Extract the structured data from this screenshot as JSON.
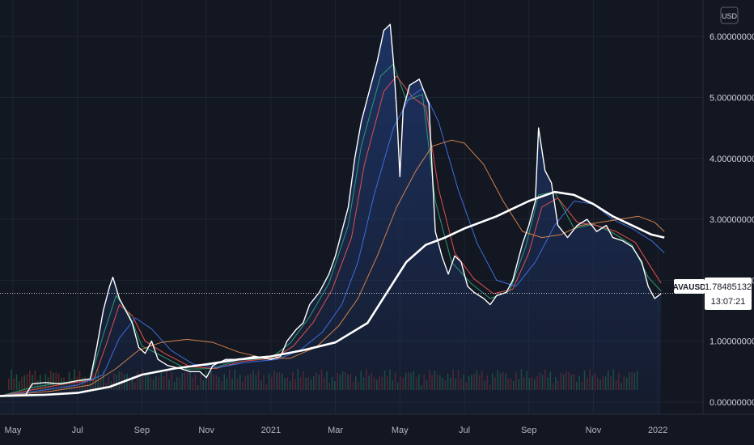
{
  "currency_button": {
    "label": "USD"
  },
  "price_tag": {
    "symbol": "AVAUSD",
    "price": "1.78485132",
    "countdown": "13:07:21"
  },
  "colors": {
    "background": "#131722",
    "price_line": "#ffffff",
    "area_top": "#1e3466",
    "ma_fast": "#2d9b6e",
    "ma_red": "#e0504a",
    "ma_blue": "#3d6ee0",
    "ma_orange": "#d4824a",
    "ma_long": "#ffffff",
    "volume_green": "#1f6b45",
    "volume_red": "#7a2a2a"
  },
  "chart_data": {
    "type": "line",
    "y_ticks": [
      "0.00000000",
      "1.00000000",
      "2.00000000",
      "3.00000000",
      "4.00000000",
      "5.00000000",
      "6.00000000"
    ],
    "x_ticks": [
      {
        "label": "May",
        "month": 0
      },
      {
        "label": "Jul",
        "month": 2
      },
      {
        "label": "Sep",
        "month": 4
      },
      {
        "label": "Nov",
        "month": 6
      },
      {
        "label": "2021",
        "month": 8
      },
      {
        "label": "Mar",
        "month": 10
      },
      {
        "label": "May",
        "month": 12
      },
      {
        "label": "Jul",
        "month": 14
      },
      {
        "label": "Sep",
        "month": 16
      },
      {
        "label": "Nov",
        "month": 18
      },
      {
        "label": "2022",
        "month": 20
      }
    ],
    "ylim": [
      -0.2,
      6.6
    ],
    "xlim": [
      -0.4,
      21.4
    ],
    "current_price": 1.78485132,
    "series": [
      {
        "role": "price",
        "points": [
          [
            -0.4,
            0.1
          ],
          [
            0.4,
            0.12
          ],
          [
            0.6,
            0.3
          ],
          [
            1.0,
            0.32
          ],
          [
            1.5,
            0.3
          ],
          [
            2.0,
            0.35
          ],
          [
            2.4,
            0.38
          ],
          [
            2.6,
            0.9
          ],
          [
            2.8,
            1.5
          ],
          [
            3.0,
            1.9
          ],
          [
            3.1,
            2.05
          ],
          [
            3.3,
            1.7
          ],
          [
            3.5,
            1.5
          ],
          [
            3.7,
            1.3
          ],
          [
            3.9,
            0.9
          ],
          [
            4.1,
            0.8
          ],
          [
            4.3,
            1.0
          ],
          [
            4.5,
            0.7
          ],
          [
            4.8,
            0.6
          ],
          [
            5.2,
            0.55
          ],
          [
            5.5,
            0.5
          ],
          [
            5.8,
            0.5
          ],
          [
            6.0,
            0.4
          ],
          [
            6.2,
            0.6
          ],
          [
            6.6,
            0.7
          ],
          [
            7.0,
            0.7
          ],
          [
            7.5,
            0.75
          ],
          [
            8.0,
            0.7
          ],
          [
            8.3,
            0.75
          ],
          [
            8.5,
            1.0
          ],
          [
            8.8,
            1.2
          ],
          [
            9.0,
            1.3
          ],
          [
            9.2,
            1.6
          ],
          [
            9.5,
            1.8
          ],
          [
            9.8,
            2.1
          ],
          [
            10.0,
            2.4
          ],
          [
            10.2,
            2.8
          ],
          [
            10.4,
            3.2
          ],
          [
            10.6,
            4.0
          ],
          [
            10.8,
            4.6
          ],
          [
            11.0,
            5.0
          ],
          [
            11.3,
            5.6
          ],
          [
            11.5,
            6.1
          ],
          [
            11.7,
            6.2
          ],
          [
            11.8,
            5.6
          ],
          [
            11.9,
            4.8
          ],
          [
            12.0,
            3.7
          ],
          [
            12.1,
            4.8
          ],
          [
            12.3,
            5.2
          ],
          [
            12.6,
            5.3
          ],
          [
            12.9,
            4.9
          ],
          [
            13.0,
            3.8
          ],
          [
            13.1,
            2.8
          ],
          [
            13.3,
            2.4
          ],
          [
            13.5,
            2.1
          ],
          [
            13.7,
            2.4
          ],
          [
            13.9,
            2.3
          ],
          [
            14.1,
            1.9
          ],
          [
            14.3,
            1.8
          ],
          [
            14.6,
            1.7
          ],
          [
            14.8,
            1.6
          ],
          [
            15.0,
            1.75
          ],
          [
            15.3,
            1.8
          ],
          [
            15.5,
            2.0
          ],
          [
            15.8,
            2.6
          ],
          [
            16.0,
            2.9
          ],
          [
            16.2,
            3.3
          ],
          [
            16.3,
            4.5
          ],
          [
            16.5,
            3.8
          ],
          [
            16.7,
            3.6
          ],
          [
            16.9,
            2.9
          ],
          [
            17.2,
            2.7
          ],
          [
            17.5,
            2.9
          ],
          [
            17.8,
            3.0
          ],
          [
            18.1,
            2.8
          ],
          [
            18.4,
            2.9
          ],
          [
            18.6,
            2.7
          ],
          [
            18.9,
            2.65
          ],
          [
            19.2,
            2.55
          ],
          [
            19.5,
            2.3
          ],
          [
            19.7,
            1.9
          ],
          [
            19.9,
            1.7
          ],
          [
            20.1,
            1.78
          ]
        ]
      },
      {
        "role": "ma-green",
        "points": [
          [
            -0.4,
            0.1
          ],
          [
            0.6,
            0.24
          ],
          [
            1.4,
            0.31
          ],
          [
            2.4,
            0.37
          ],
          [
            2.8,
            1.1
          ],
          [
            3.2,
            1.75
          ],
          [
            3.6,
            1.45
          ],
          [
            4.0,
            0.92
          ],
          [
            4.6,
            0.76
          ],
          [
            5.4,
            0.54
          ],
          [
            6.2,
            0.55
          ],
          [
            7.0,
            0.69
          ],
          [
            8.0,
            0.72
          ],
          [
            8.6,
            0.97
          ],
          [
            9.2,
            1.4
          ],
          [
            9.8,
            1.95
          ],
          [
            10.4,
            2.9
          ],
          [
            10.8,
            4.2
          ],
          [
            11.4,
            5.35
          ],
          [
            11.8,
            5.55
          ],
          [
            12.2,
            4.95
          ],
          [
            12.7,
            5.05
          ],
          [
            13.1,
            3.3
          ],
          [
            13.6,
            2.3
          ],
          [
            14.2,
            1.95
          ],
          [
            14.8,
            1.7
          ],
          [
            15.4,
            1.82
          ],
          [
            15.9,
            2.55
          ],
          [
            16.3,
            3.4
          ],
          [
            16.8,
            3.45
          ],
          [
            17.4,
            2.85
          ],
          [
            18.0,
            2.92
          ],
          [
            18.6,
            2.78
          ],
          [
            19.2,
            2.58
          ],
          [
            19.7,
            2.05
          ],
          [
            20.1,
            1.82
          ]
        ]
      },
      {
        "role": "ma-red",
        "points": [
          [
            -0.4,
            0.1
          ],
          [
            0.8,
            0.22
          ],
          [
            1.6,
            0.3
          ],
          [
            2.5,
            0.36
          ],
          [
            2.9,
            0.95
          ],
          [
            3.3,
            1.6
          ],
          [
            3.7,
            1.42
          ],
          [
            4.1,
            1.0
          ],
          [
            4.7,
            0.8
          ],
          [
            5.5,
            0.58
          ],
          [
            6.3,
            0.55
          ],
          [
            7.1,
            0.67
          ],
          [
            8.1,
            0.72
          ],
          [
            8.7,
            0.92
          ],
          [
            9.3,
            1.3
          ],
          [
            9.9,
            1.85
          ],
          [
            10.5,
            2.7
          ],
          [
            10.9,
            3.9
          ],
          [
            11.5,
            5.1
          ],
          [
            11.9,
            5.35
          ],
          [
            12.4,
            5.0
          ],
          [
            12.8,
            4.85
          ],
          [
            13.2,
            3.5
          ],
          [
            13.7,
            2.45
          ],
          [
            14.3,
            2.02
          ],
          [
            14.9,
            1.78
          ],
          [
            15.5,
            1.85
          ],
          [
            16.0,
            2.45
          ],
          [
            16.4,
            3.2
          ],
          [
            16.9,
            3.35
          ],
          [
            17.5,
            2.95
          ],
          [
            18.1,
            2.9
          ],
          [
            18.7,
            2.8
          ],
          [
            19.3,
            2.62
          ],
          [
            19.8,
            2.2
          ],
          [
            20.1,
            1.95
          ]
        ]
      },
      {
        "role": "ma-blue",
        "points": [
          [
            -0.4,
            0.1
          ],
          [
            1.0,
            0.2
          ],
          [
            2.0,
            0.28
          ],
          [
            2.8,
            0.45
          ],
          [
            3.3,
            1.05
          ],
          [
            3.8,
            1.38
          ],
          [
            4.3,
            1.2
          ],
          [
            4.9,
            0.85
          ],
          [
            5.6,
            0.62
          ],
          [
            6.4,
            0.57
          ],
          [
            7.2,
            0.65
          ],
          [
            8.2,
            0.7
          ],
          [
            8.9,
            0.85
          ],
          [
            9.6,
            1.15
          ],
          [
            10.2,
            1.6
          ],
          [
            10.7,
            2.3
          ],
          [
            11.2,
            3.4
          ],
          [
            11.8,
            4.5
          ],
          [
            12.3,
            5.0
          ],
          [
            12.7,
            5.15
          ],
          [
            13.2,
            4.6
          ],
          [
            13.8,
            3.5
          ],
          [
            14.4,
            2.6
          ],
          [
            15.0,
            2.0
          ],
          [
            15.6,
            1.9
          ],
          [
            16.2,
            2.3
          ],
          [
            16.8,
            2.9
          ],
          [
            17.4,
            3.3
          ],
          [
            18.0,
            3.25
          ],
          [
            18.6,
            3.0
          ],
          [
            19.2,
            2.85
          ],
          [
            19.8,
            2.65
          ],
          [
            20.2,
            2.45
          ]
        ]
      },
      {
        "role": "ma-orange",
        "points": [
          [
            -0.4,
            0.1
          ],
          [
            1.2,
            0.18
          ],
          [
            2.4,
            0.28
          ],
          [
            3.2,
            0.55
          ],
          [
            3.9,
            0.85
          ],
          [
            4.6,
            0.98
          ],
          [
            5.4,
            1.03
          ],
          [
            6.2,
            0.98
          ],
          [
            7.0,
            0.82
          ],
          [
            7.8,
            0.72
          ],
          [
            8.6,
            0.72
          ],
          [
            9.4,
            0.9
          ],
          [
            10.1,
            1.25
          ],
          [
            10.7,
            1.7
          ],
          [
            11.3,
            2.4
          ],
          [
            11.9,
            3.2
          ],
          [
            12.5,
            3.8
          ],
          [
            13.0,
            4.2
          ],
          [
            13.6,
            4.3
          ],
          [
            14.0,
            4.25
          ],
          [
            14.6,
            3.9
          ],
          [
            15.2,
            3.3
          ],
          [
            15.8,
            2.8
          ],
          [
            16.4,
            2.7
          ],
          [
            17.0,
            2.75
          ],
          [
            17.6,
            2.9
          ],
          [
            18.2,
            2.95
          ],
          [
            18.8,
            3.0
          ],
          [
            19.4,
            3.05
          ],
          [
            19.9,
            2.95
          ],
          [
            20.2,
            2.8
          ]
        ]
      },
      {
        "role": "ma-long",
        "points": [
          [
            -0.4,
            0.1
          ],
          [
            1.0,
            0.12
          ],
          [
            2.0,
            0.15
          ],
          [
            3.0,
            0.25
          ],
          [
            4.0,
            0.45
          ],
          [
            5.0,
            0.55
          ],
          [
            6.0,
            0.62
          ],
          [
            7.0,
            0.7
          ],
          [
            8.0,
            0.75
          ],
          [
            9.0,
            0.85
          ],
          [
            10.0,
            0.98
          ],
          [
            11.0,
            1.3
          ],
          [
            11.6,
            1.8
          ],
          [
            12.2,
            2.3
          ],
          [
            12.8,
            2.58
          ],
          [
            13.4,
            2.7
          ],
          [
            14.0,
            2.85
          ],
          [
            15.0,
            3.05
          ],
          [
            16.0,
            3.3
          ],
          [
            16.8,
            3.45
          ],
          [
            17.4,
            3.4
          ],
          [
            18.0,
            3.25
          ],
          [
            18.6,
            3.05
          ],
          [
            19.2,
            2.9
          ],
          [
            19.8,
            2.75
          ],
          [
            20.2,
            2.7
          ]
        ]
      }
    ]
  }
}
